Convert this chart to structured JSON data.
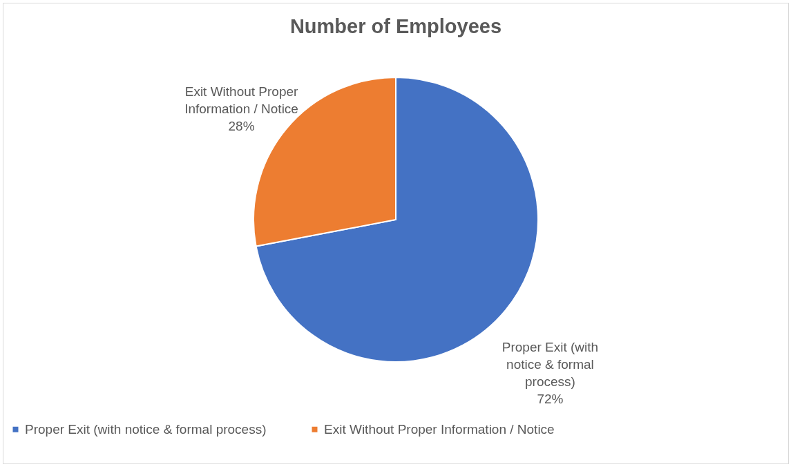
{
  "chart_data": {
    "type": "pie",
    "title": "Number of Employees",
    "categories": [
      "Proper Exit (with notice & formal process)",
      "Exit Without Proper Information / Notice"
    ],
    "values": [
      72,
      28
    ],
    "colors": [
      "#4472c4",
      "#ed7d31"
    ],
    "value_labels": [
      "72%",
      "28%"
    ],
    "legend": "bottom"
  }
}
